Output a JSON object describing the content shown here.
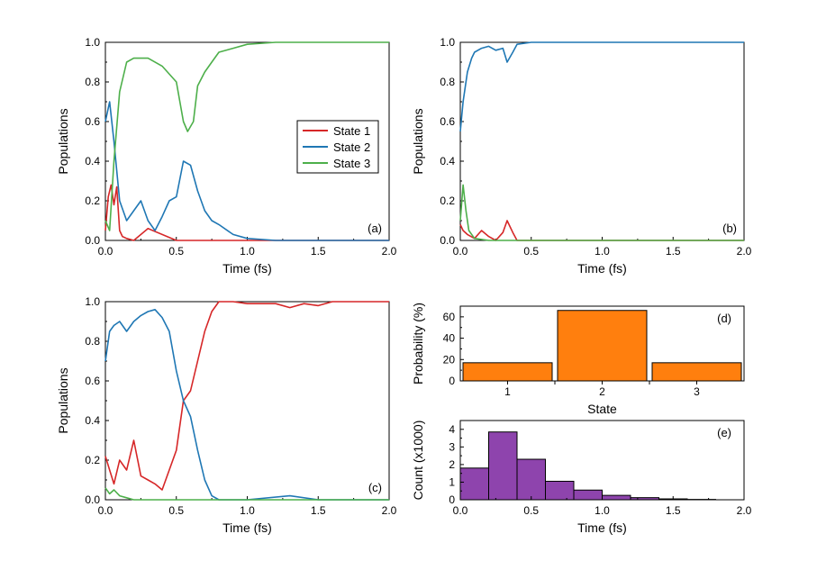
{
  "chart_data": [
    {
      "panel": "a",
      "type": "line",
      "label": "(a)",
      "xlabel": "Time (fs)",
      "ylabel": "Populations",
      "xlim": [
        0.0,
        2.0
      ],
      "ylim": [
        0.0,
        1.0
      ],
      "xticks": [
        "0.0",
        "0.5",
        "1.0",
        "1.5",
        "2.0"
      ],
      "yticks": [
        "0.0",
        "0.2",
        "0.4",
        "0.6",
        "0.8",
        "1.0"
      ],
      "legend": "right-middle",
      "series": [
        {
          "name": "State 1",
          "color": "#d62728",
          "x": [
            0,
            0.02,
            0.04,
            0.06,
            0.08,
            0.1,
            0.12,
            0.15,
            0.2,
            0.3,
            0.5,
            1.0,
            2.0
          ],
          "y": [
            0.05,
            0.22,
            0.28,
            0.18,
            0.27,
            0.05,
            0.02,
            0.01,
            0.0,
            0.06,
            0.0,
            0.0,
            0.0
          ]
        },
        {
          "name": "State 2",
          "color": "#1f77b4",
          "x": [
            0,
            0.03,
            0.06,
            0.1,
            0.15,
            0.2,
            0.25,
            0.3,
            0.35,
            0.4,
            0.45,
            0.5,
            0.55,
            0.6,
            0.65,
            0.7,
            0.75,
            0.8,
            0.9,
            1.0,
            1.2,
            1.3,
            2.0
          ],
          "y": [
            0.6,
            0.7,
            0.5,
            0.2,
            0.1,
            0.15,
            0.2,
            0.1,
            0.05,
            0.12,
            0.2,
            0.22,
            0.4,
            0.38,
            0.25,
            0.15,
            0.1,
            0.08,
            0.03,
            0.01,
            0.0,
            0.0,
            0.0
          ]
        },
        {
          "name": "State 3",
          "color": "#4daf4a",
          "x": [
            0,
            0.03,
            0.06,
            0.1,
            0.15,
            0.2,
            0.3,
            0.4,
            0.5,
            0.55,
            0.58,
            0.62,
            0.65,
            0.7,
            0.75,
            0.8,
            0.9,
            1.0,
            1.2,
            2.0
          ],
          "y": [
            0.1,
            0.05,
            0.4,
            0.75,
            0.9,
            0.92,
            0.92,
            0.88,
            0.8,
            0.6,
            0.55,
            0.6,
            0.78,
            0.85,
            0.9,
            0.95,
            0.97,
            0.99,
            1.0,
            1.0
          ]
        }
      ]
    },
    {
      "panel": "b",
      "type": "line",
      "label": "(b)",
      "xlabel": "Time (fs)",
      "ylabel": "Populations",
      "xlim": [
        0.0,
        2.0
      ],
      "ylim": [
        0.0,
        1.0
      ],
      "xticks": [
        "0.0",
        "0.5",
        "1.0",
        "1.5",
        "2.0"
      ],
      "yticks": [
        "0.0",
        "0.2",
        "0.4",
        "0.6",
        "0.8",
        "1.0"
      ],
      "series": [
        {
          "color": "#d62728",
          "x": [
            0,
            0.02,
            0.05,
            0.1,
            0.15,
            0.2,
            0.25,
            0.3,
            0.33,
            0.37,
            0.4,
            2.0
          ],
          "y": [
            0.08,
            0.05,
            0.03,
            0.01,
            0.05,
            0.02,
            0.0,
            0.04,
            0.1,
            0.04,
            0.0,
            0.0
          ]
        },
        {
          "color": "#1f77b4",
          "x": [
            0,
            0.02,
            0.05,
            0.08,
            0.1,
            0.15,
            0.2,
            0.25,
            0.3,
            0.33,
            0.37,
            0.4,
            0.5,
            2.0
          ],
          "y": [
            0.55,
            0.7,
            0.85,
            0.92,
            0.95,
            0.97,
            0.98,
            0.96,
            0.97,
            0.9,
            0.95,
            0.99,
            1.0,
            1.0
          ]
        },
        {
          "color": "#4daf4a",
          "x": [
            0,
            0.02,
            0.04,
            0.06,
            0.1,
            0.2,
            0.5,
            2.0
          ],
          "y": [
            0.1,
            0.28,
            0.15,
            0.05,
            0.01,
            0.0,
            0.0,
            0.0
          ]
        }
      ]
    },
    {
      "panel": "c",
      "type": "line",
      "label": "(c)",
      "xlabel": "Time (fs)",
      "ylabel": "Populations",
      "xlim": [
        0.0,
        2.0
      ],
      "ylim": [
        0.0,
        1.0
      ],
      "xticks": [
        "0.0",
        "0.5",
        "1.0",
        "1.5",
        "2.0"
      ],
      "yticks": [
        "0.0",
        "0.2",
        "0.4",
        "0.6",
        "0.8",
        "1.0"
      ],
      "series": [
        {
          "color": "#d62728",
          "x": [
            0,
            0.03,
            0.06,
            0.1,
            0.15,
            0.2,
            0.25,
            0.3,
            0.35,
            0.4,
            0.45,
            0.5,
            0.55,
            0.6,
            0.65,
            0.7,
            0.75,
            0.8,
            0.9,
            1.0,
            1.2,
            1.3,
            1.4,
            1.5,
            1.6,
            2.0
          ],
          "y": [
            0.22,
            0.15,
            0.08,
            0.2,
            0.15,
            0.3,
            0.12,
            0.1,
            0.08,
            0.05,
            0.15,
            0.25,
            0.5,
            0.55,
            0.7,
            0.85,
            0.95,
            1.0,
            1.0,
            0.99,
            0.99,
            0.97,
            0.99,
            0.98,
            1.0,
            1.0
          ]
        },
        {
          "color": "#1f77b4",
          "x": [
            0,
            0.03,
            0.06,
            0.1,
            0.15,
            0.2,
            0.25,
            0.3,
            0.35,
            0.4,
            0.45,
            0.5,
            0.55,
            0.6,
            0.65,
            0.7,
            0.75,
            0.8,
            1.0,
            1.3,
            1.5,
            2.0
          ],
          "y": [
            0.7,
            0.85,
            0.88,
            0.9,
            0.85,
            0.9,
            0.93,
            0.95,
            0.96,
            0.92,
            0.85,
            0.65,
            0.5,
            0.42,
            0.25,
            0.1,
            0.02,
            0.0,
            0.0,
            0.02,
            0.0,
            0.0
          ]
        },
        {
          "color": "#4daf4a",
          "x": [
            0,
            0.03,
            0.06,
            0.1,
            0.15,
            0.2,
            0.3,
            2.0
          ],
          "y": [
            0.06,
            0.03,
            0.05,
            0.02,
            0.01,
            0.0,
            0.0,
            0.0
          ]
        }
      ]
    },
    {
      "panel": "d",
      "type": "bar",
      "label": "(d)",
      "xlabel": "State",
      "ylabel": "Probability (%)",
      "categories": [
        "1",
        "2",
        "3"
      ],
      "values": [
        17,
        66,
        17
      ],
      "ylim": [
        0,
        70
      ],
      "yticks": [
        "0",
        "20",
        "40",
        "60"
      ],
      "color": "#ff7f0e"
    },
    {
      "panel": "e",
      "type": "bar",
      "label": "(e)",
      "xlabel": "Time (fs)",
      "ylabel": "Count (x1000)",
      "bin_edges": [
        0.0,
        0.2,
        0.4,
        0.6,
        0.8,
        1.0,
        1.2,
        1.4,
        1.6,
        1.8
      ],
      "values": [
        1.8,
        3.85,
        2.3,
        1.05,
        0.55,
        0.25,
        0.12,
        0.05,
        0.02
      ],
      "xlim": [
        0.0,
        2.0
      ],
      "ylim": [
        0,
        4.5
      ],
      "xticks": [
        "0.0",
        "0.5",
        "1.0",
        "1.5",
        "2.0"
      ],
      "yticks": [
        "0",
        "1",
        "2",
        "3",
        "4"
      ],
      "color": "#8e44ad"
    }
  ]
}
